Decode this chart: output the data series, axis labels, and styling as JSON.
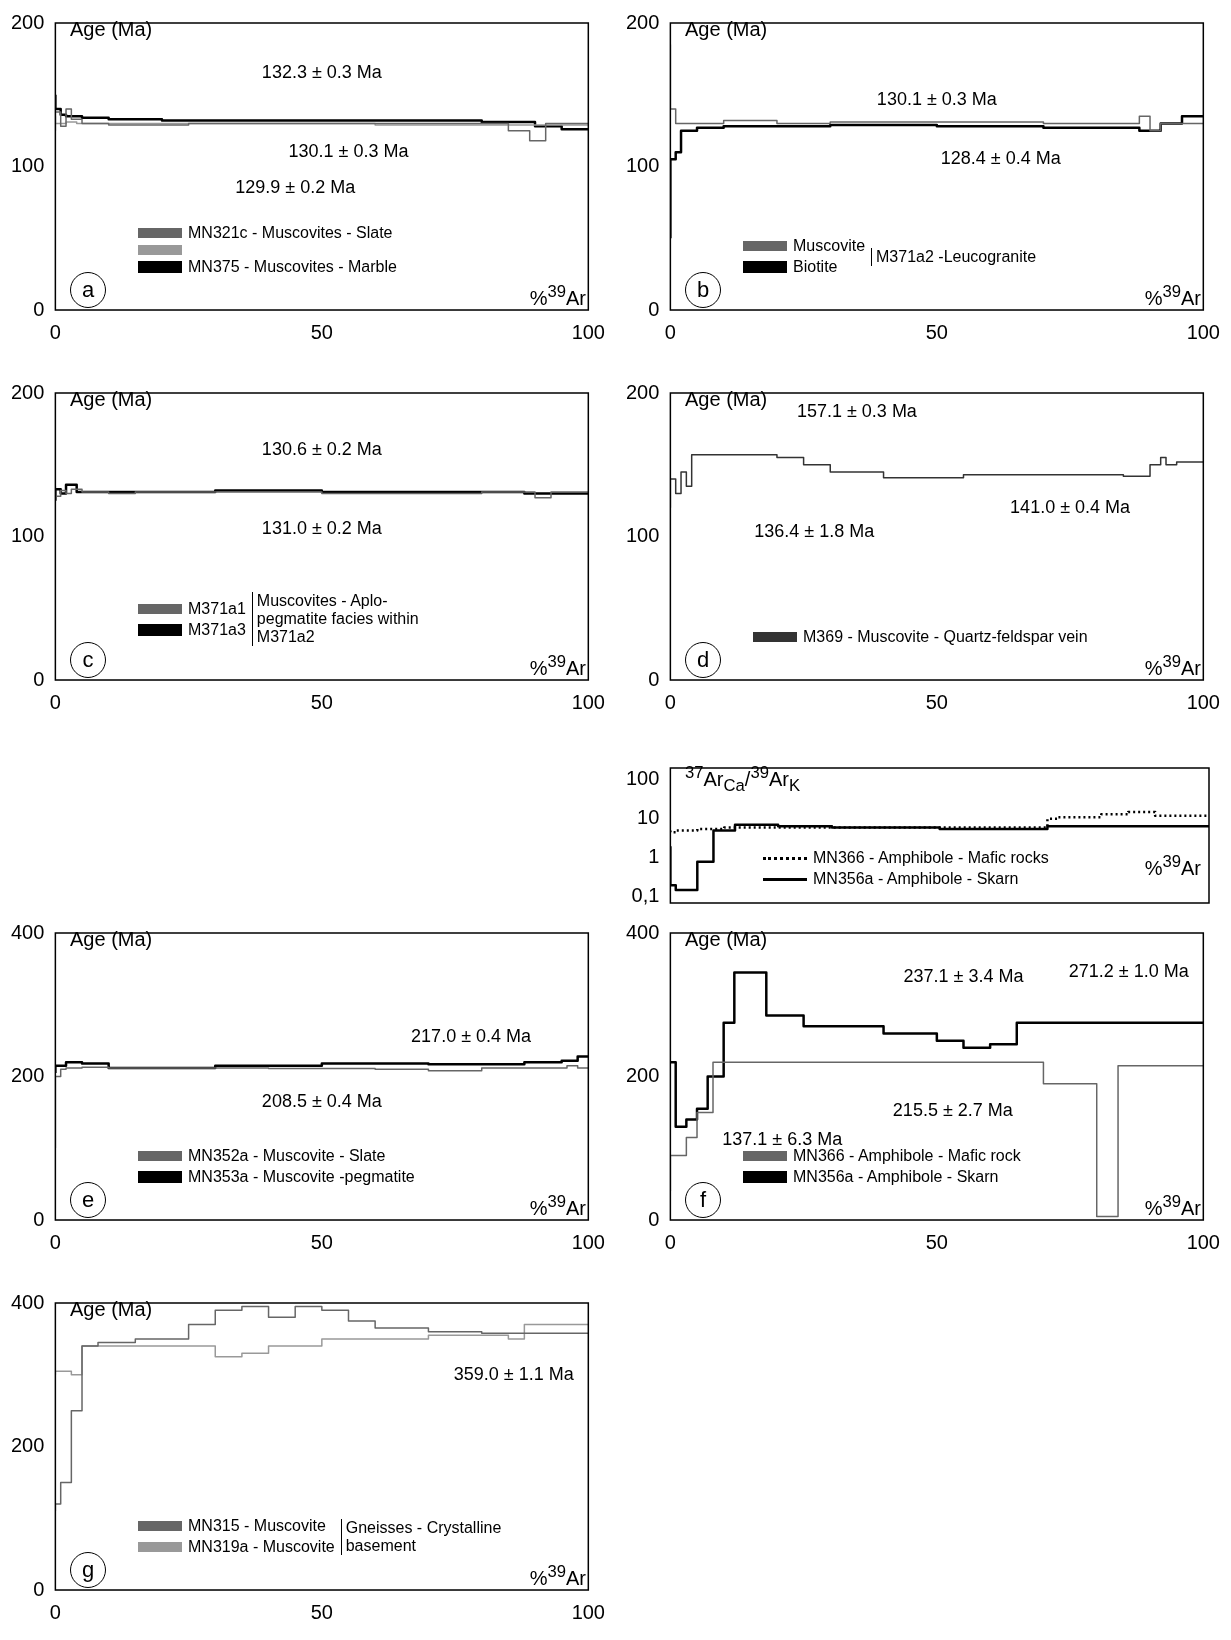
{
  "chart_data": [
    {
      "type": "step",
      "title": "a",
      "ylabel": "Age (Ma)",
      "xlabel": "%$^{39}$Ar",
      "xlim": [
        0,
        100
      ],
      "xticks": [
        0,
        50,
        100
      ],
      "ylim": [
        0,
        200
      ],
      "yticks": [
        0,
        100,
        200
      ],
      "grid": false,
      "legend": "bottom left",
      "annotations": [
        "132.3 ± 0.3 Ma",
        "130.1 ± 0.3 Ma",
        "129.9 ± 0.2 Ma"
      ],
      "series": [
        {
          "name": "MN321c - Muscovites - Slate",
          "color": "#666666",
          "x": [
            0,
            1,
            2,
            3,
            5,
            10,
            25,
            50,
            85,
            89,
            92,
            96,
            100
          ],
          "values": [
            125,
            138,
            128,
            140,
            133,
            130,
            129,
            130,
            130,
            125,
            118,
            130,
            130
          ]
        },
        {
          "color": "#999999",
          "x": [
            0,
            2,
            4,
            10,
            30,
            60,
            90,
            100
          ],
          "values": [
            135,
            130,
            131,
            130,
            130,
            130,
            129,
            129
          ]
        },
        {
          "name": "MN375 - Muscovites - Marble",
          "color": "#000000",
          "x": [
            0,
            1,
            2,
            5,
            10,
            20,
            50,
            80,
            90,
            95,
            98,
            100
          ],
          "values": [
            150,
            140,
            136,
            135,
            134,
            133,
            132,
            132,
            131,
            128,
            126,
            126
          ]
        }
      ]
    },
    {
      "type": "step",
      "title": "b",
      "ylabel": "Age (Ma)",
      "xlabel": "%$^{39}$Ar",
      "xlim": [
        0,
        100
      ],
      "xticks": [
        0,
        50,
        100
      ],
      "ylim": [
        0,
        200
      ],
      "yticks": [
        0,
        100,
        200
      ],
      "grid": false,
      "legend": "bottom",
      "legend_title": "M371a2 -Leucogranite",
      "annotations": [
        "130.1 ± 0.3 Ma",
        "128.4 ± 0.4 Ma"
      ],
      "series": [
        {
          "name": "Muscovite",
          "color": "#666666",
          "x": [
            0,
            1,
            2,
            5,
            10,
            20,
            24,
            30,
            50,
            70,
            88,
            90,
            92,
            94,
            100
          ],
          "values": [
            185,
            140,
            130,
            130,
            130,
            132,
            130,
            130,
            131,
            131,
            130,
            135,
            125,
            130,
            130
          ]
        },
        {
          "name": "Biotite",
          "color": "#000000",
          "x": [
            0,
            1,
            2,
            5,
            10,
            30,
            50,
            70,
            88,
            92,
            96,
            100
          ],
          "values": [
            50,
            105,
            110,
            125,
            127,
            128,
            129,
            128,
            127,
            125,
            130,
            135
          ]
        }
      ]
    },
    {
      "type": "step",
      "title": "c",
      "ylabel": "Age (Ma)",
      "xlabel": "%$^{39}$Ar",
      "xlim": [
        0,
        100
      ],
      "xticks": [
        0,
        50,
        100
      ],
      "ylim": [
        0,
        200
      ],
      "yticks": [
        0,
        100,
        200
      ],
      "grid": false,
      "legend": "bottom left",
      "legend_title": "Muscovites - Aplo-pegmatite facies within M371a2",
      "annotations": [
        "130.6 ± 0.2 Ma",
        "131.0 ± 0.2 Ma"
      ],
      "series": [
        {
          "name": "M371a1",
          "color": "#666666",
          "x": [
            0,
            1,
            2,
            3,
            5,
            10,
            15,
            20,
            50,
            80,
            90,
            93,
            95,
            100
          ],
          "values": [
            135,
            128,
            132,
            130,
            133,
            131,
            130,
            131,
            131,
            130,
            131,
            127,
            131,
            131
          ]
        },
        {
          "name": "M371a3",
          "color": "#000000",
          "x": [
            0,
            1,
            2,
            4,
            6,
            10,
            30,
            50,
            70,
            88,
            92,
            100
          ],
          "values": [
            125,
            133,
            130,
            136,
            131,
            131,
            131,
            132,
            131,
            131,
            130,
            130
          ]
        }
      ]
    },
    {
      "type": "step",
      "title": "d",
      "ylabel": "Age (Ma)",
      "xlabel": "%$^{39}$Ar",
      "xlim": [
        0,
        100
      ],
      "xticks": [
        0,
        50,
        100
      ],
      "ylim": [
        0,
        200
      ],
      "yticks": [
        0,
        100,
        200
      ],
      "grid": false,
      "legend": "bottom left",
      "annotations": [
        "157.1 ± 0.3 Ma",
        "141.0 ± 0.4 Ma",
        "136.4 ± 1.8 Ma"
      ],
      "series": [
        {
          "name": "M369 - Muscovite - Quartz-feldspar vein",
          "color": "#333333",
          "x": [
            0,
            1,
            2,
            3,
            4,
            6,
            20,
            25,
            30,
            40,
            55,
            70,
            85,
            90,
            92,
            93,
            95,
            100
          ],
          "values": [
            120,
            140,
            130,
            145,
            135,
            157,
            157,
            155,
            150,
            145,
            141,
            143,
            143,
            142,
            150,
            155,
            150,
            152
          ]
        }
      ]
    },
    {
      "type": "step",
      "ylabel": "$^{37}$Ar$_{Ca}$/$^{39}$Ar$_{K}$",
      "xlabel": "%$^{39}$Ar",
      "xlim": [
        0,
        100
      ],
      "ylim": [
        0.07,
        200
      ],
      "yticks": [
        100,
        10,
        1,
        {
          "value": 0.1,
          "label": "0,1"
        }
      ],
      "log": true,
      "grid": false,
      "legend": "bottom",
      "series": [
        {
          "name": "MN366 - Amphibole - Mafic rocks",
          "color": "#000000",
          "line_style": "dotted",
          "x": [
            0,
            1,
            5,
            10,
            20,
            40,
            70,
            72,
            80,
            85,
            90,
            92,
            100
          ],
          "values": [
            5,
            4.5,
            5,
            5.5,
            6,
            6,
            6,
            10,
            11,
            13,
            15,
            12,
            12
          ]
        },
        {
          "name": "MN356a - Amphibole - Skarn",
          "color": "#000000",
          "line_style": "solid",
          "x": [
            0,
            1,
            5,
            8,
            12,
            20,
            30,
            50,
            70,
            100
          ],
          "values": [
            2,
            0.2,
            0.15,
            0.8,
            5,
            7,
            6.5,
            6,
            5.5,
            6.5
          ]
        }
      ]
    },
    {
      "type": "step",
      "title": "e",
      "ylabel": "Age (Ma)",
      "xlabel": "%$^{39}$Ar",
      "xlim": [
        0,
        100
      ],
      "xticks": [
        0,
        50,
        100
      ],
      "ylim": [
        0,
        400
      ],
      "yticks": [
        0,
        200,
        400
      ],
      "grid": false,
      "legend": "bottom left",
      "annotations": [
        "217.0 ± 0.4 Ma",
        "208.5 ± 0.4 Ma"
      ],
      "series": [
        {
          "name": "MN352a - Muscovite - Slate",
          "color": "#666666",
          "x": [
            0,
            1,
            2,
            5,
            10,
            20,
            40,
            60,
            70,
            80,
            96,
            98,
            100
          ],
          "values": [
            100,
            200,
            210,
            212,
            213,
            212,
            212,
            211,
            210,
            208,
            212,
            215,
            212
          ]
        },
        {
          "name": "MN353a - Muscovite -pegmatite",
          "color": "#000000",
          "x": [
            0,
            2,
            5,
            10,
            30,
            50,
            70,
            88,
            95,
            98,
            100
          ],
          "values": [
            205,
            215,
            220,
            218,
            212,
            215,
            218,
            217,
            220,
            222,
            228
          ]
        }
      ]
    },
    {
      "type": "step",
      "title": "f",
      "ylabel": "Age (Ma)",
      "xlabel": "%$^{39}$Ar",
      "xlim": [
        0,
        100
      ],
      "xticks": [
        0,
        50,
        100
      ],
      "ylim": [
        0,
        400
      ],
      "yticks": [
        0,
        200,
        400
      ],
      "grid": false,
      "legend": "bottom",
      "annotations": [
        "237.1 ± 3.4 Ma",
        "271.2 ± 1.0 Ma",
        "215.5 ± 2.7 Ma",
        "137.1 ± 6.3 Ma"
      ],
      "series": [
        {
          "name": "MN366 - Amphibole - Mafic rock",
          "color": "#666666",
          "x": [
            0,
            3,
            5,
            8,
            10,
            30,
            50,
            70,
            75,
            80,
            84,
            85,
            100
          ],
          "values": [
            40,
            90,
            115,
            150,
            220,
            220,
            220,
            220,
            190,
            190,
            5,
            215,
            215
          ]
        },
        {
          "name": "MN356a - Amphibole - Skarn",
          "color": "#000000",
          "x": [
            0,
            1,
            3,
            5,
            7,
            10,
            12,
            18,
            25,
            30,
            40,
            50,
            55,
            60,
            65,
            70,
            100
          ],
          "values": [
            220,
            220,
            130,
            140,
            155,
            200,
            275,
            345,
            285,
            270,
            270,
            260,
            250,
            240,
            245,
            275,
            275
          ]
        }
      ]
    },
    {
      "type": "step",
      "title": "g",
      "ylabel": "Age (Ma)",
      "xlabel": "%$^{39}$Ar",
      "xlim": [
        0,
        100
      ],
      "xticks": [
        0,
        50,
        100
      ],
      "ylim": [
        0,
        400
      ],
      "yticks": [
        0,
        200,
        400
      ],
      "grid": false,
      "legend": "bottom left",
      "legend_title": "Gneisses - Crystalline basement",
      "annotations": [
        "359.0 ± 1.1 Ma"
      ],
      "series": [
        {
          "name": "MN315 - Muscovite",
          "color": "#666666",
          "x": [
            0,
            1,
            3,
            5,
            8,
            15,
            25,
            30,
            35,
            40,
            45,
            50,
            55,
            60,
            70,
            80,
            90,
            100
          ],
          "values": [
            110,
            120,
            150,
            250,
            340,
            345,
            350,
            370,
            390,
            395,
            380,
            395,
            390,
            375,
            365,
            360,
            358,
            358
          ]
        },
        {
          "name": "MN319a - Muscovite",
          "color": "#999999",
          "x": [
            0,
            1,
            3,
            5,
            8,
            15,
            30,
            35,
            40,
            50,
            70,
            85,
            88,
            90,
            100
          ],
          "values": [
            300,
            305,
            305,
            300,
            340,
            340,
            340,
            325,
            330,
            340,
            350,
            355,
            350,
            370,
            370
          ]
        }
      ]
    }
  ]
}
